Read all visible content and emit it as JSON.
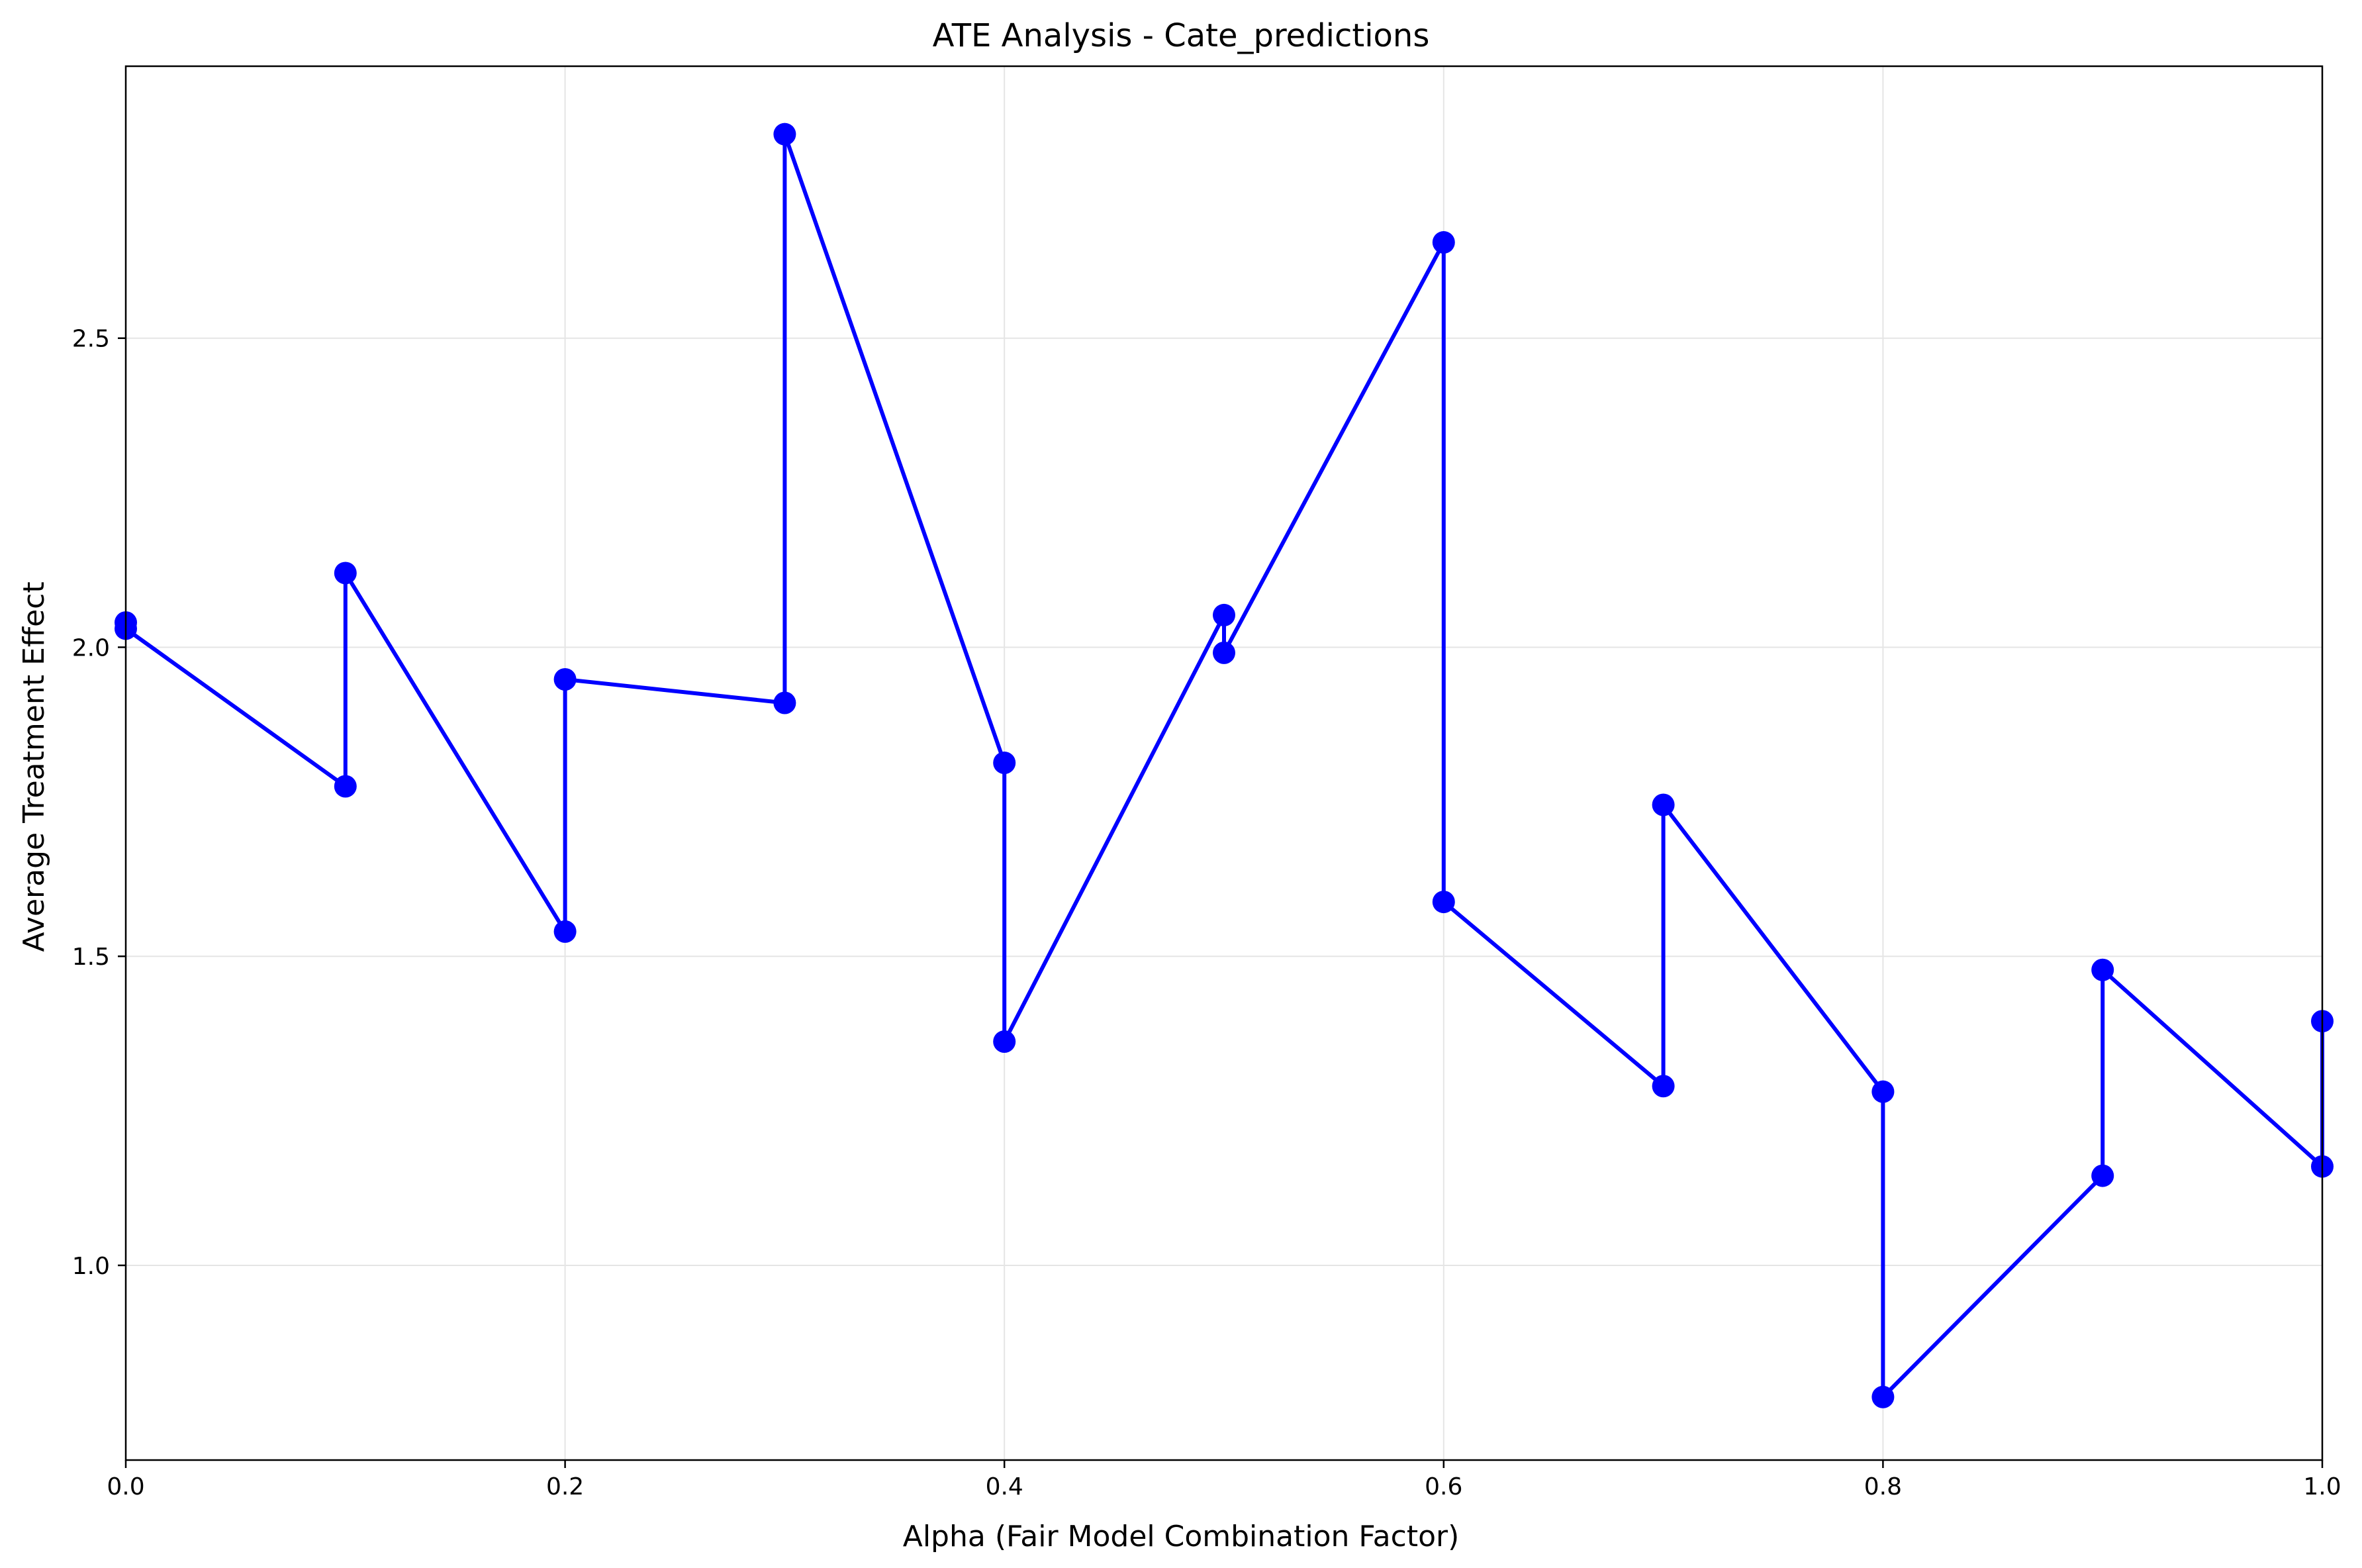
{
  "chart_data": {
    "type": "line",
    "title": "ATE Analysis - Cate_predictions",
    "xlabel": "Alpha (Fair Model Combination Factor)",
    "ylabel": "Average Treatment Effect",
    "xlim": [
      0.0,
      1.0
    ],
    "ylim": [
      0.685,
      2.94
    ],
    "xticks": [
      0.0,
      0.2,
      0.4,
      0.6,
      0.8,
      1.0
    ],
    "xtick_labels": [
      "0.0",
      "0.2",
      "0.4",
      "0.6",
      "0.8",
      "1.0"
    ],
    "yticks": [
      1.0,
      1.5,
      2.0,
      2.5
    ],
    "ytick_labels": [
      "1.0",
      "1.5",
      "2.0",
      "2.5"
    ],
    "grid": true,
    "series": [
      {
        "color": "#0000ff",
        "marker": "circle",
        "points": [
          [
            0.0,
            2.04
          ],
          [
            0.0,
            2.03
          ],
          [
            0.1,
            1.775
          ],
          [
            0.1,
            2.12
          ],
          [
            0.2,
            1.54
          ],
          [
            0.2,
            1.948
          ],
          [
            0.3,
            1.91
          ],
          [
            0.3,
            2.83
          ],
          [
            0.4,
            1.813
          ],
          [
            0.4,
            1.362
          ],
          [
            0.5,
            2.052
          ],
          [
            0.5,
            1.991
          ],
          [
            0.6,
            2.655
          ],
          [
            0.6,
            1.588
          ],
          [
            0.7,
            1.29
          ],
          [
            0.7,
            1.745
          ],
          [
            0.8,
            1.281
          ],
          [
            0.8,
            0.787
          ],
          [
            0.9,
            1.145
          ],
          [
            0.9,
            1.478
          ],
          [
            1.0,
            1.16
          ],
          [
            1.0,
            1.395
          ]
        ]
      }
    ]
  }
}
